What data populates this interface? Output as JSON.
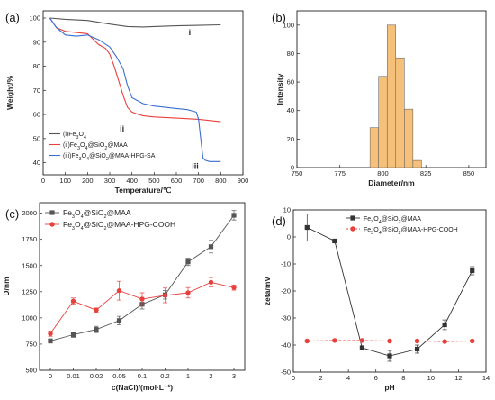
{
  "chart_data": [
    {
      "type": "line",
      "panel_label": "(a)",
      "xlabel": "Temperature/℃",
      "ylabel": "Weight/%",
      "xlim": [
        0,
        900
      ],
      "ylim": [
        35,
        103
      ],
      "xticks": [
        "0",
        "100",
        "200",
        "300",
        "400",
        "500",
        "600",
        "700",
        "800",
        "900"
      ],
      "yticks": [
        "40",
        "50",
        "60",
        "70",
        "80",
        "90",
        "100"
      ],
      "legend_position": "bottom-left",
      "series": [
        {
          "name": "(i)Fe3O4",
          "legend_parts": [
            [
              "(i)Fe",
              ""
            ],
            [
              "3",
              "sub"
            ],
            [
              "O",
              ""
            ],
            [
              "4",
              "sub"
            ]
          ],
          "color": "#555555",
          "x": [
            30,
            100,
            200,
            300,
            380,
            450,
            500,
            600,
            700,
            800
          ],
          "y": [
            100,
            99.5,
            99,
            97.5,
            96.5,
            96.3,
            96.5,
            96.8,
            97,
            97.2
          ]
        },
        {
          "name": "(ii)Fe3O4@SiO2@MAA",
          "legend_parts": [
            [
              "(ii)Fe",
              ""
            ],
            [
              "3",
              "sub"
            ],
            [
              "O",
              ""
            ],
            [
              "4",
              "sub"
            ],
            [
              "@SiO",
              ""
            ],
            [
              "2",
              "sub"
            ],
            [
              "@MAA",
              ""
            ]
          ],
          "color": "#e8403c",
          "x": [
            30,
            60,
            100,
            150,
            200,
            250,
            280,
            300,
            320,
            340,
            360,
            380,
            400,
            430,
            450,
            500,
            600,
            700,
            800
          ],
          "y": [
            100,
            96,
            94.5,
            94,
            93.5,
            89,
            87.5,
            85,
            80,
            74,
            68,
            63,
            61,
            60,
            59.5,
            59,
            58.5,
            58,
            57
          ]
        },
        {
          "name": "(iii)Fe3O4@SiO2@MAA-HPG-SA",
          "legend_parts": [
            [
              "(iii)Fe",
              ""
            ],
            [
              "3",
              "sub"
            ],
            [
              "O",
              ""
            ],
            [
              "4",
              "sub"
            ],
            [
              "@SiO",
              ""
            ],
            [
              "2",
              "sub"
            ],
            [
              "@MAA-HPG-SA",
              ""
            ]
          ],
          "color": "#3a6fd0",
          "x": [
            30,
            60,
            100,
            150,
            200,
            250,
            300,
            330,
            360,
            380,
            400,
            430,
            450,
            500,
            550,
            600,
            650,
            690,
            700,
            710,
            720,
            730,
            750,
            800
          ],
          "y": [
            100,
            96,
            93,
            92.5,
            93,
            91,
            88,
            84,
            79,
            72,
            67,
            65.5,
            64.5,
            63.5,
            63,
            62.5,
            62,
            61,
            58,
            50,
            42,
            41,
            40.5,
            40.5
          ]
        }
      ],
      "annotations": [
        "i",
        "ii",
        "iii"
      ]
    },
    {
      "type": "bar",
      "panel_label": "(b)",
      "xlabel": "Diameter/nm",
      "ylabel": "Intensity",
      "xlim": [
        750,
        860
      ],
      "ylim": [
        0,
        110
      ],
      "xticks": [
        "750",
        "775",
        "800",
        "825",
        "850"
      ],
      "yticks": [
        "0",
        "20",
        "40",
        "60",
        "80",
        "100"
      ],
      "bar_color": "#f5c07a",
      "x": [
        795,
        800,
        805,
        810,
        815,
        820
      ],
      "values": [
        28,
        64,
        100,
        77,
        41,
        5
      ]
    },
    {
      "type": "line",
      "panel_label": "(c)",
      "xlabel": "c(NaCl)/(mol·L⁻¹)",
      "ylabel": "D/nm",
      "categories": [
        "0",
        "0.01",
        "0.02",
        "0.05",
        "0.1",
        "0.2",
        "1",
        "2",
        "3"
      ],
      "ylim": [
        500,
        2100
      ],
      "yticks": [
        "500",
        "750",
        "1000",
        "1250",
        "1500",
        "1750",
        "2000"
      ],
      "legend_position": "top-left",
      "series": [
        {
          "name": "Fe3O4@SiO2@MAA",
          "legend_parts": [
            [
              "Fe",
              ""
            ],
            [
              "3",
              "sub"
            ],
            [
              "O",
              ""
            ],
            [
              "4",
              "sub"
            ],
            [
              "@SiO",
              ""
            ],
            [
              "2",
              "sub"
            ],
            [
              "@MAA",
              ""
            ]
          ],
          "color": "#555555",
          "marker": "square",
          "values": [
            780,
            840,
            890,
            975,
            1130,
            1220,
            1535,
            1680,
            1980
          ],
          "errors": [
            20,
            25,
            30,
            40,
            45,
            40,
            35,
            60,
            45
          ]
        },
        {
          "name": "Fe3O4@SiO2@MAA-HPG-COOH",
          "legend_parts": [
            [
              "Fe",
              ""
            ],
            [
              "3",
              "sub"
            ],
            [
              "O",
              ""
            ],
            [
              "4",
              "sub"
            ],
            [
              "@SiO",
              ""
            ],
            [
              "2",
              "sub"
            ],
            [
              "@MAA-HPG-COOH",
              ""
            ]
          ],
          "color": "#e8403c",
          "marker": "circle",
          "values": [
            850,
            1160,
            1075,
            1260,
            1180,
            1215,
            1240,
            1340,
            1290
          ],
          "errors": [
            25,
            30,
            20,
            90,
            60,
            70,
            50,
            45,
            25
          ]
        }
      ]
    },
    {
      "type": "line",
      "panel_label": "(d)",
      "xlabel": "pH",
      "ylabel": "zeta/mV",
      "xlim": [
        0,
        14
      ],
      "ylim": [
        -50,
        10
      ],
      "xticks": [
        "0",
        "2",
        "4",
        "6",
        "8",
        "10",
        "12",
        "14"
      ],
      "yticks": [
        "-50",
        "-40",
        "-30",
        "-20",
        "-10",
        "0",
        "10"
      ],
      "legend_position": "top-right",
      "series": [
        {
          "name": "Fe3O4@SiO2@MAA",
          "legend_parts": [
            [
              "Fe",
              ""
            ],
            [
              "3",
              "sub"
            ],
            [
              "O",
              ""
            ],
            [
              "4",
              "sub"
            ],
            [
              "@SiO",
              ""
            ],
            [
              "2",
              "sub"
            ],
            [
              "@MAA",
              ""
            ]
          ],
          "color": "#333333",
          "marker": "square",
          "linestyle": "solid",
          "x": [
            1,
            3,
            5,
            7,
            9,
            11,
            13
          ],
          "y": [
            3.5,
            -1.5,
            -41,
            -44,
            -41.5,
            -32.5,
            -12.5
          ],
          "errors": [
            5,
            0.5,
            0.5,
            2,
            1.5,
            1.8,
            1.5
          ]
        },
        {
          "name": "Fe3O4@SiO2@MAA-HPG-COOH",
          "legend_parts": [
            [
              "Fe",
              ""
            ],
            [
              "3",
              "sub"
            ],
            [
              "O",
              ""
            ],
            [
              "4",
              "sub"
            ],
            [
              "@SiO",
              ""
            ],
            [
              "2",
              "sub"
            ],
            [
              "@MAA-HPG-COOH",
              ""
            ]
          ],
          "color": "#e8403c",
          "marker": "circle",
          "linestyle": "dashed",
          "x": [
            1,
            3,
            5,
            7,
            9,
            11,
            13
          ],
          "y": [
            -38.5,
            -38.3,
            -38.3,
            -38.5,
            -38.5,
            -38.7,
            -38.5
          ],
          "errors": [
            0.3,
            0.3,
            0.3,
            0.3,
            0.3,
            0.3,
            0.3
          ]
        }
      ]
    }
  ]
}
